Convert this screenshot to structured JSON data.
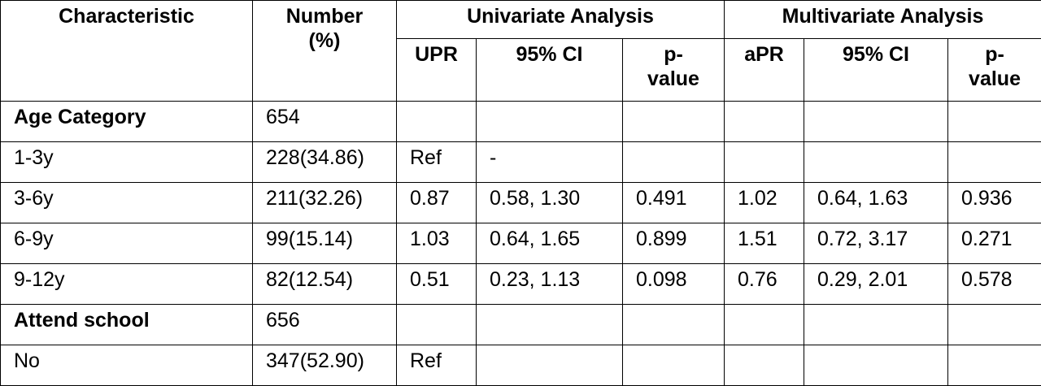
{
  "table": {
    "header": {
      "characteristic": "Characteristic",
      "number": "Number (%)",
      "univariate": "Univariate Analysis",
      "multivariate": "Multivariate Analysis"
    },
    "subheader": {
      "upr": "UPR",
      "upr_ci": "95% CI",
      "upr_p": "p-value",
      "apr": "aPR",
      "apr_ci": "95% CI",
      "apr_p": "p-value"
    },
    "rows": [
      {
        "label": "Age Category",
        "number": "654",
        "bold": true
      },
      {
        "label": "1-3y",
        "number": "228(34.86)",
        "upr": "Ref",
        "upr_ci": "-"
      },
      {
        "label": "3-6y",
        "number": "211(32.26)",
        "upr": "0.87",
        "upr_ci": "0.58, 1.30",
        "upr_p": "0.491",
        "apr": "1.02",
        "apr_ci": "0.64, 1.63",
        "apr_p": "0.936"
      },
      {
        "label": "6-9y",
        "number": "99(15.14)",
        "upr": "1.03",
        "upr_ci": "0.64, 1.65",
        "upr_p": "0.899",
        "apr": "1.51",
        "apr_ci": "0.72, 3.17",
        "apr_p": "0.271"
      },
      {
        "label": "9-12y",
        "number": "82(12.54)",
        "upr": "0.51",
        "upr_ci": "0.23, 1.13",
        "upr_p": "0.098",
        "apr": "0.76",
        "apr_ci": "0.29, 2.01",
        "apr_p": "0.578"
      },
      {
        "label": "Attend school",
        "number": "656",
        "bold": true
      },
      {
        "label": "No",
        "number": "347(52.90)",
        "upr": "Ref"
      }
    ]
  }
}
